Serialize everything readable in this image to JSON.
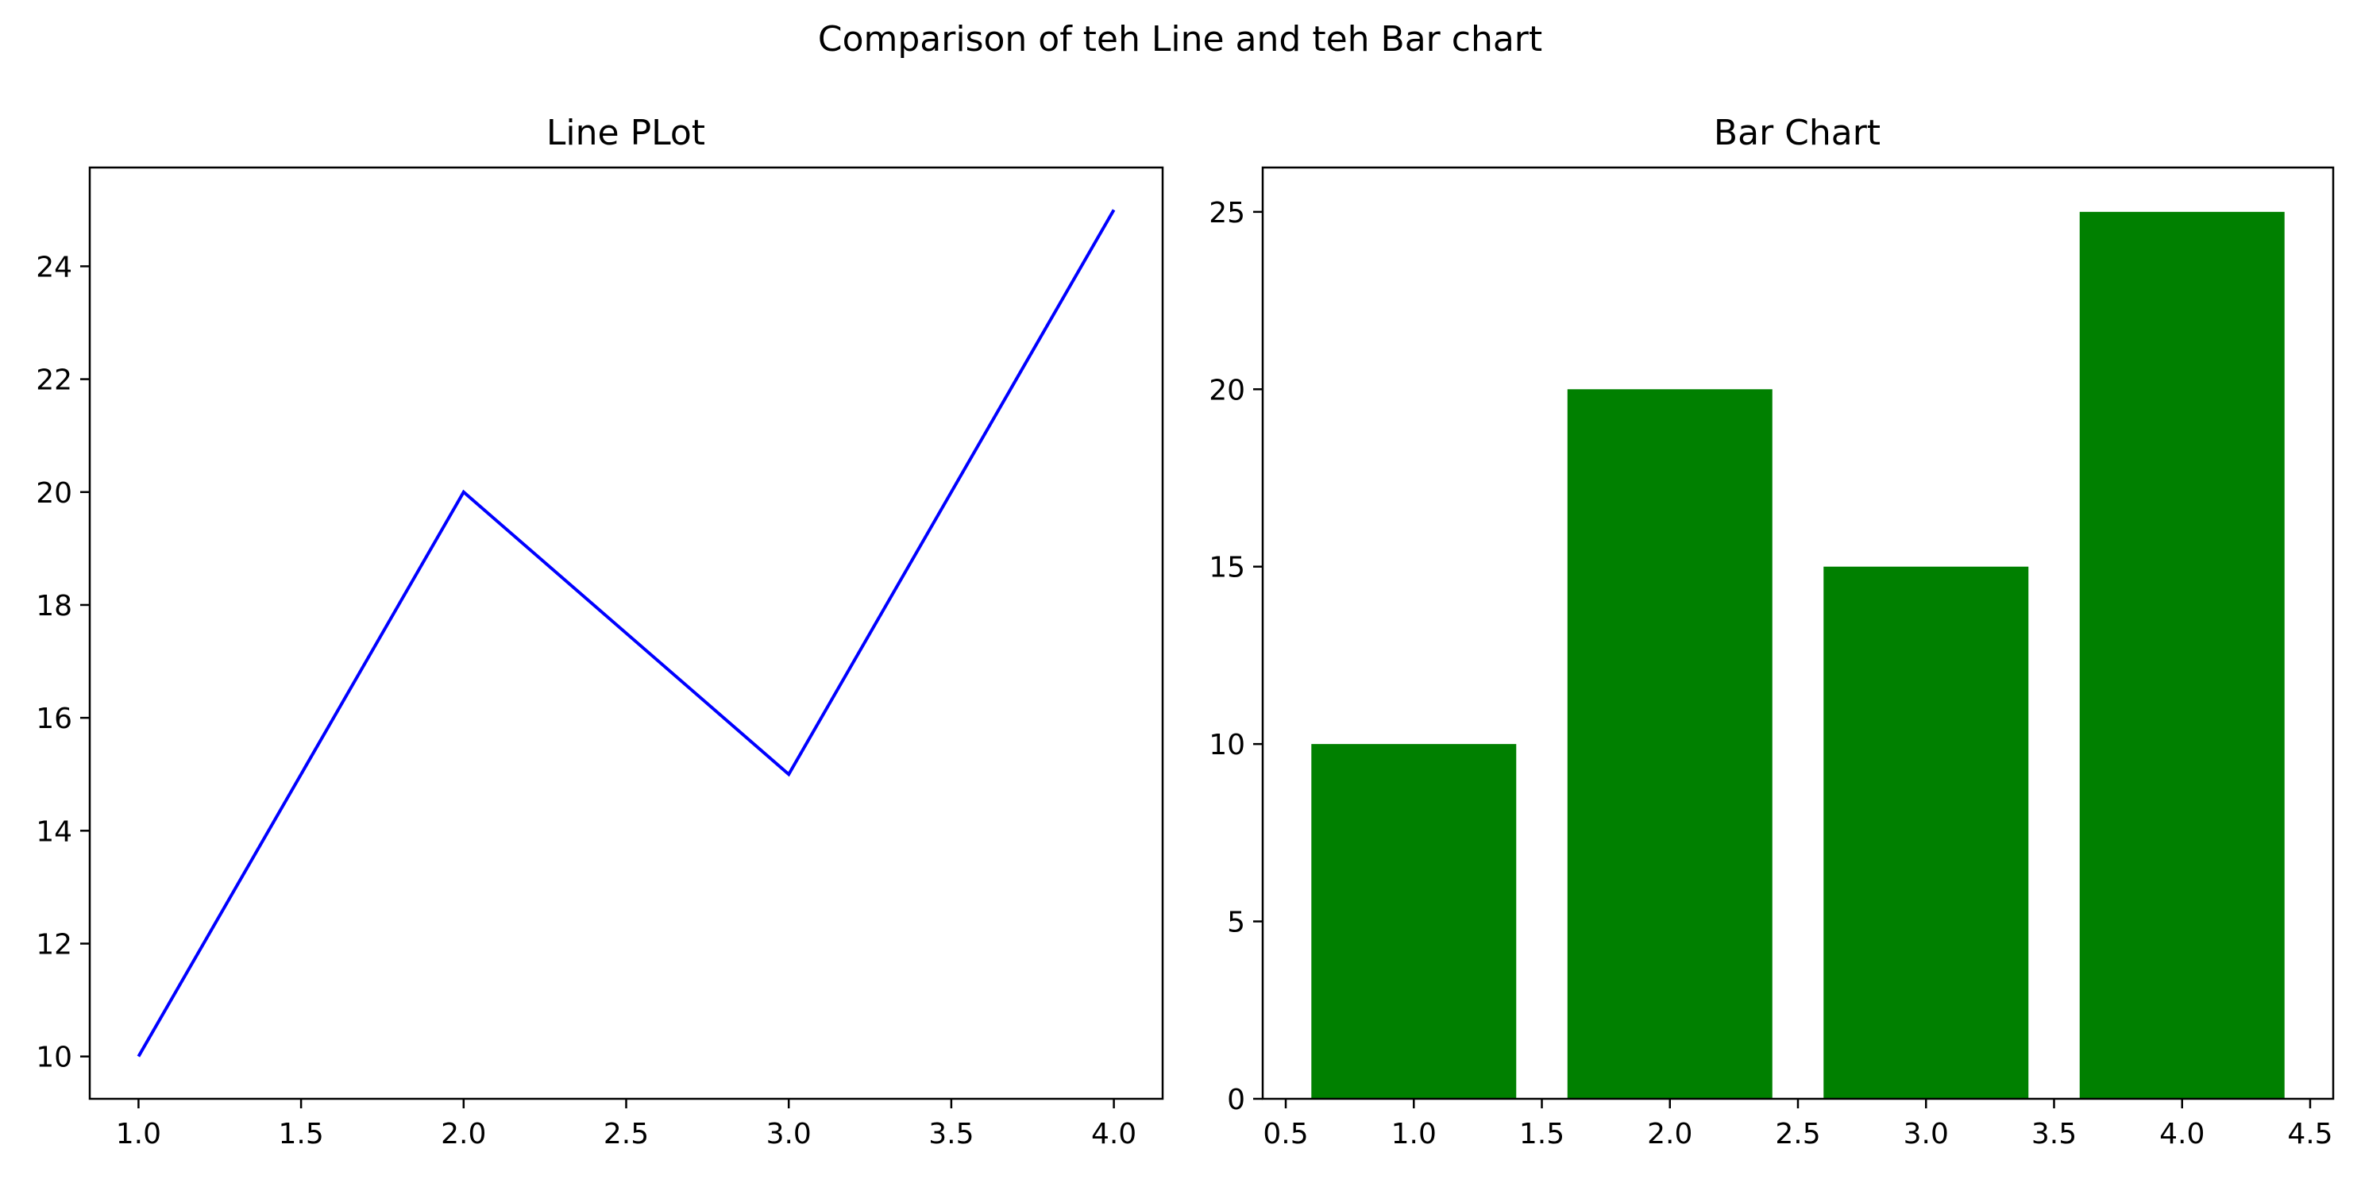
{
  "figure": {
    "suptitle": "Comparison of teh Line and teh Bar chart"
  },
  "chart_data": [
    {
      "type": "line",
      "title": "Line PLot",
      "xlabel": "",
      "ylabel": "",
      "x": [
        1,
        2,
        3,
        4
      ],
      "series": [
        {
          "values": [
            10,
            20,
            15,
            25
          ],
          "color": "#0000ff"
        }
      ],
      "xlim": [
        0.85,
        4.15
      ],
      "ylim": [
        9.25,
        25.75
      ],
      "xticks": [
        1.0,
        1.5,
        2.0,
        2.5,
        3.0,
        3.5,
        4.0
      ],
      "xtick_labels": [
        "1.0",
        "1.5",
        "2.0",
        "2.5",
        "3.0",
        "3.5",
        "4.0"
      ],
      "yticks": [
        10,
        12,
        14,
        16,
        18,
        20,
        22,
        24
      ],
      "ytick_labels": [
        "10",
        "12",
        "14",
        "16",
        "18",
        "20",
        "22",
        "24"
      ],
      "grid": false
    },
    {
      "type": "bar",
      "title": "Bar Chart",
      "xlabel": "",
      "ylabel": "",
      "x": [
        1,
        2,
        3,
        4
      ],
      "values": [
        10,
        20,
        15,
        25
      ],
      "bar_width": 0.8,
      "color": "#008000",
      "xlim": [
        0.41,
        4.59
      ],
      "ylim": [
        0,
        26.25
      ],
      "xticks": [
        0.5,
        1.0,
        1.5,
        2.0,
        2.5,
        3.0,
        3.5,
        4.0,
        4.5
      ],
      "xtick_labels": [
        "0.5",
        "1.0",
        "1.5",
        "2.0",
        "2.5",
        "3.0",
        "3.5",
        "4.0",
        "4.5"
      ],
      "yticks": [
        0,
        5,
        10,
        15,
        20,
        25
      ],
      "ytick_labels": [
        "0",
        "5",
        "10",
        "15",
        "20",
        "25"
      ],
      "grid": false
    }
  ]
}
